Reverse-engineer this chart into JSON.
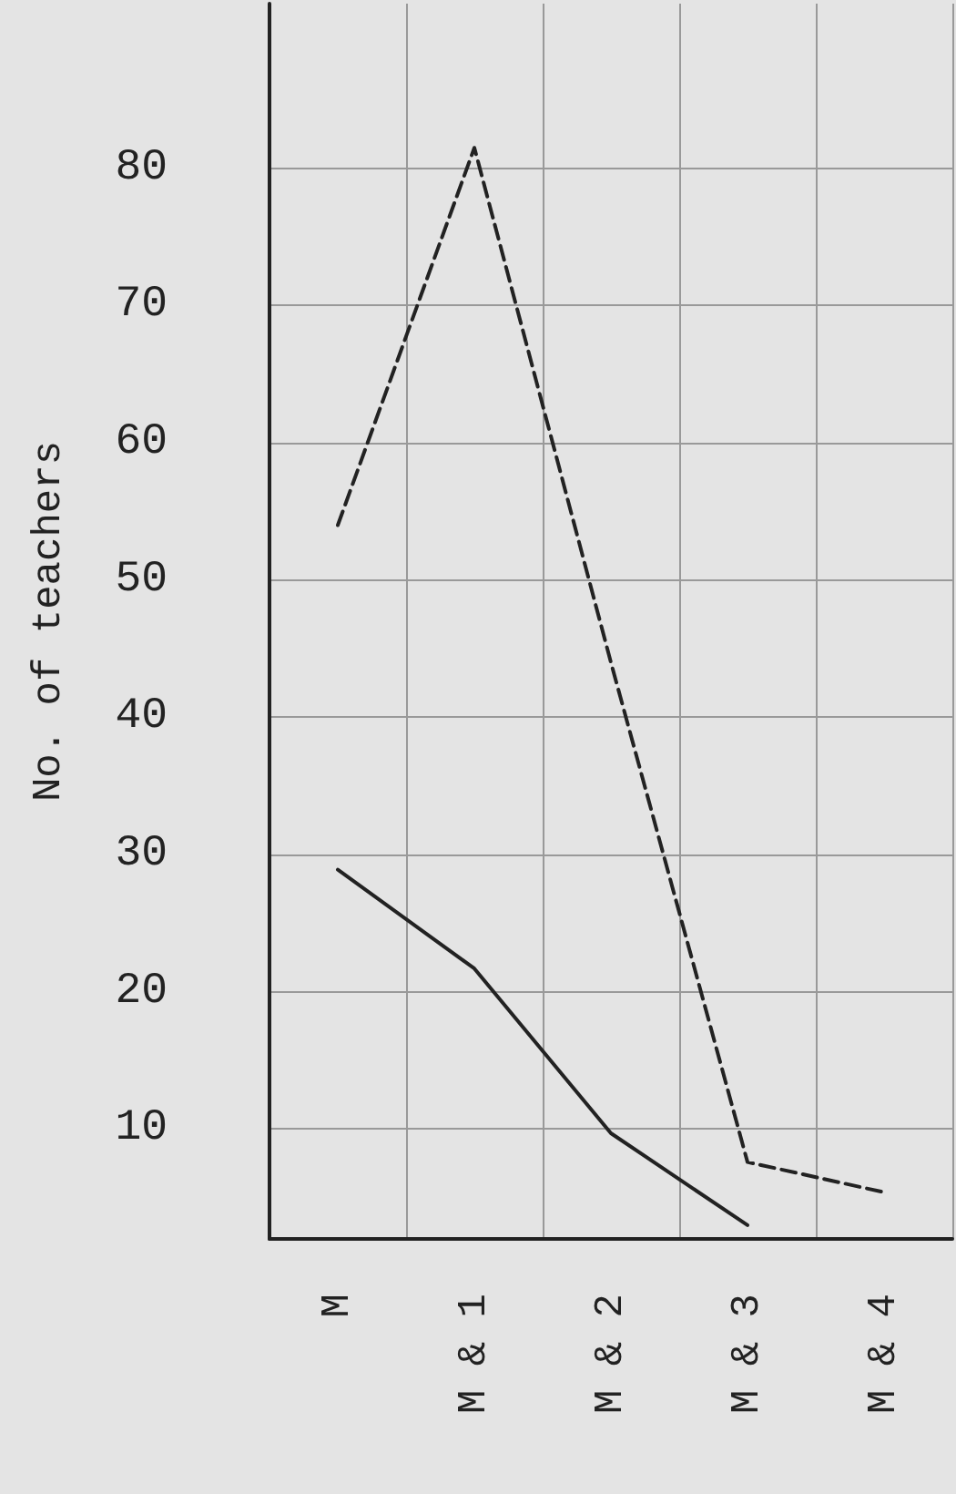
{
  "chart_data": {
    "type": "line",
    "ylabel": "No. of teachers",
    "categories": [
      "M",
      "M & 1",
      "M & 2",
      "M & 3",
      "M & 4"
    ],
    "series": [
      {
        "color": "#222222",
        "line_style": "dashed",
        "values": [
          54,
          81.5,
          44,
          7.6,
          5.4
        ]
      },
      {
        "color": "#222222",
        "line_style": "solid",
        "values": [
          28.9,
          21.7,
          9.7,
          3,
          null
        ]
      }
    ],
    "ylim": [
      2,
      92
    ],
    "yticks": [
      10,
      20,
      30,
      40,
      50,
      60,
      70,
      80
    ],
    "grid": true,
    "marker": "none"
  }
}
